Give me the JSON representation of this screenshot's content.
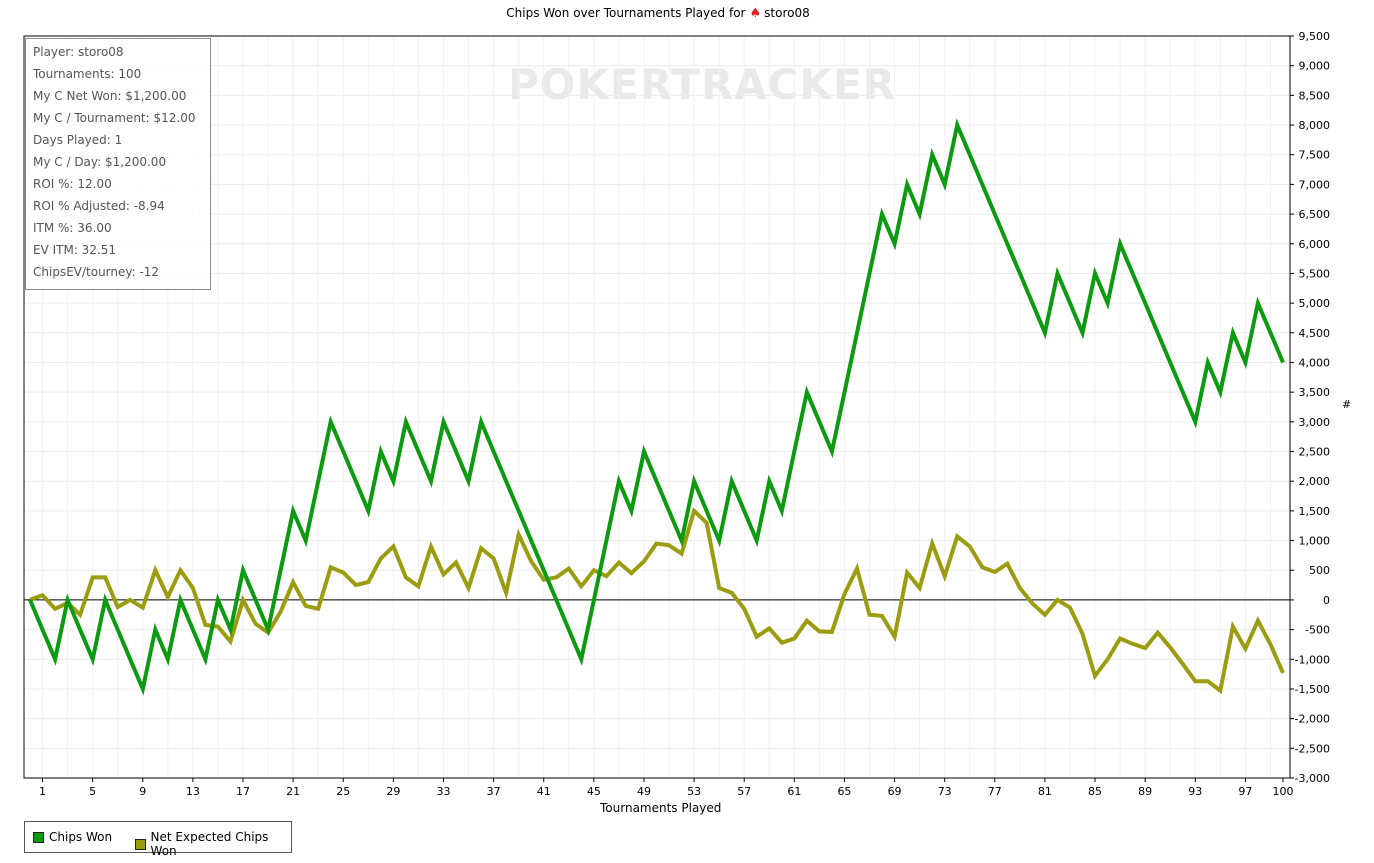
{
  "chart_data": {
    "type": "line",
    "title_prefix": "Chips Won over Tournaments Played for",
    "title_player": "storo08",
    "xlabel": "Tournaments Played",
    "ylabel": "#",
    "x_ticks": [
      1,
      5,
      9,
      13,
      17,
      21,
      25,
      29,
      33,
      37,
      41,
      45,
      49,
      53,
      57,
      61,
      65,
      69,
      73,
      77,
      81,
      85,
      89,
      93,
      97,
      100
    ],
    "y_ticks": [
      "9,500",
      "9,000",
      "8,500",
      "8,000",
      "7,500",
      "7,000",
      "6,500",
      "6,000",
      "5,500",
      "5,000",
      "4,500",
      "4,000",
      "3,500",
      "3,000",
      "2,500",
      "2,000",
      "1,500",
      "1,000",
      "500",
      "0",
      "-500",
      "-1,000",
      "-1,500",
      "-2,000",
      "-2,500",
      "-3,000"
    ],
    "xlim": [
      0,
      100
    ],
    "ylim": [
      -3000,
      9500
    ],
    "grid": true,
    "legend_position": "bottom-left",
    "series": [
      {
        "name": "Chips Won",
        "color": "#0c9b10",
        "x": [
          0,
          1,
          2,
          3,
          4,
          5,
          6,
          7,
          8,
          9,
          10,
          11,
          12,
          13,
          14,
          15,
          16,
          17,
          18,
          19,
          20,
          21,
          22,
          23,
          24,
          25,
          26,
          27,
          28,
          29,
          30,
          31,
          32,
          33,
          34,
          35,
          36,
          37,
          38,
          39,
          40,
          41,
          42,
          43,
          44,
          45,
          46,
          47,
          48,
          49,
          50,
          51,
          52,
          53,
          54,
          55,
          56,
          57,
          58,
          59,
          60,
          61,
          62,
          63,
          64,
          65,
          66,
          67,
          68,
          69,
          70,
          71,
          72,
          73,
          74,
          75,
          76,
          77,
          78,
          79,
          80,
          81,
          82,
          83,
          84,
          85,
          86,
          87,
          88,
          89,
          90,
          91,
          92,
          93,
          94,
          95,
          96,
          97,
          98,
          99,
          100
        ],
        "values": [
          0,
          -500,
          -1000,
          0,
          -500,
          -1000,
          0,
          -500,
          -1000,
          -1500,
          -500,
          -1000,
          0,
          -500,
          -1000,
          0,
          -500,
          500,
          0,
          -500,
          500,
          1500,
          1000,
          2000,
          3000,
          2500,
          2000,
          1500,
          2500,
          2000,
          3000,
          2500,
          2000,
          3000,
          2500,
          2000,
          3000,
          2500,
          2000,
          1500,
          1000,
          500,
          0,
          -500,
          -1000,
          0,
          1000,
          2000,
          1500,
          2500,
          2000,
          1500,
          1000,
          2000,
          1500,
          1000,
          2000,
          1500,
          1000,
          2000,
          1500,
          2500,
          3500,
          3000,
          2500,
          3500,
          4500,
          5500,
          6500,
          6000,
          7000,
          6500,
          7500,
          7000,
          8000,
          7500,
          7000,
          6500,
          6000,
          5500,
          5000,
          4500,
          5500,
          5000,
          4500,
          5500,
          5000,
          6000,
          5500,
          5000,
          4500,
          4000,
          3500,
          3000,
          4000,
          3500,
          4500,
          4000,
          5000,
          4500,
          4000
        ]
      },
      {
        "name": "Net Expected Chips Won",
        "color": "#9c9c10",
        "x": [
          0,
          1,
          2,
          3,
          4,
          5,
          6,
          7,
          8,
          9,
          10,
          11,
          12,
          13,
          14,
          15,
          16,
          17,
          18,
          19,
          20,
          21,
          22,
          23,
          24,
          25,
          26,
          27,
          28,
          29,
          30,
          31,
          32,
          33,
          34,
          35,
          36,
          37,
          38,
          39,
          40,
          41,
          42,
          43,
          44,
          45,
          46,
          47,
          48,
          49,
          50,
          51,
          52,
          53,
          54,
          55,
          56,
          57,
          58,
          59,
          60,
          61,
          62,
          63,
          64,
          65,
          66,
          67,
          68,
          69,
          70,
          71,
          72,
          73,
          74,
          75,
          76,
          77,
          78,
          79,
          80,
          81,
          82,
          83,
          84,
          85,
          86,
          87,
          88,
          89,
          90,
          91,
          92,
          93,
          94,
          95,
          96,
          97,
          98,
          99,
          100
        ],
        "values": [
          0,
          80,
          -150,
          -50,
          -250,
          380,
          380,
          -120,
          0,
          -130,
          500,
          50,
          500,
          200,
          -420,
          -450,
          -700,
          0,
          -400,
          -550,
          -200,
          300,
          -100,
          -150,
          550,
          460,
          250,
          300,
          700,
          900,
          380,
          230,
          900,
          430,
          630,
          200,
          870,
          700,
          120,
          1100,
          650,
          340,
          380,
          530,
          230,
          500,
          400,
          630,
          450,
          650,
          950,
          920,
          780,
          1500,
          1300,
          200,
          120,
          -150,
          -620,
          -480,
          -720,
          -650,
          -350,
          -530,
          -540,
          100,
          530,
          -250,
          -270,
          -620,
          460,
          200,
          950,
          400,
          1070,
          900,
          550,
          470,
          610,
          200,
          -60,
          -250,
          0,
          -130,
          -570,
          -1280,
          -1000,
          -650,
          -740,
          -810,
          -550,
          -800,
          -1080,
          -1370,
          -1370,
          -1530,
          -450,
          -820,
          -350,
          -750,
          -1230
        ]
      }
    ]
  },
  "stats_box": {
    "lines": [
      "Player: storo08",
      "Tournaments: 100",
      "My C Net Won: $1,200.00",
      "My C / Tournament: $12.00",
      "Days Played: 1",
      "My C / Day: $1,200.00",
      "ROI %: 12.00",
      "ROI % Adjusted: -8.94",
      "ITM %: 36.00",
      "EV ITM: 32.51",
      "ChipsEV/tourney: -12"
    ]
  },
  "watermark": {
    "text": "POKERTRACKER"
  },
  "legend": {
    "items": [
      {
        "label": "Chips Won",
        "color": "#0c9b10"
      },
      {
        "label": "Net Expected Chips Won",
        "color": "#9c9c10"
      }
    ]
  }
}
